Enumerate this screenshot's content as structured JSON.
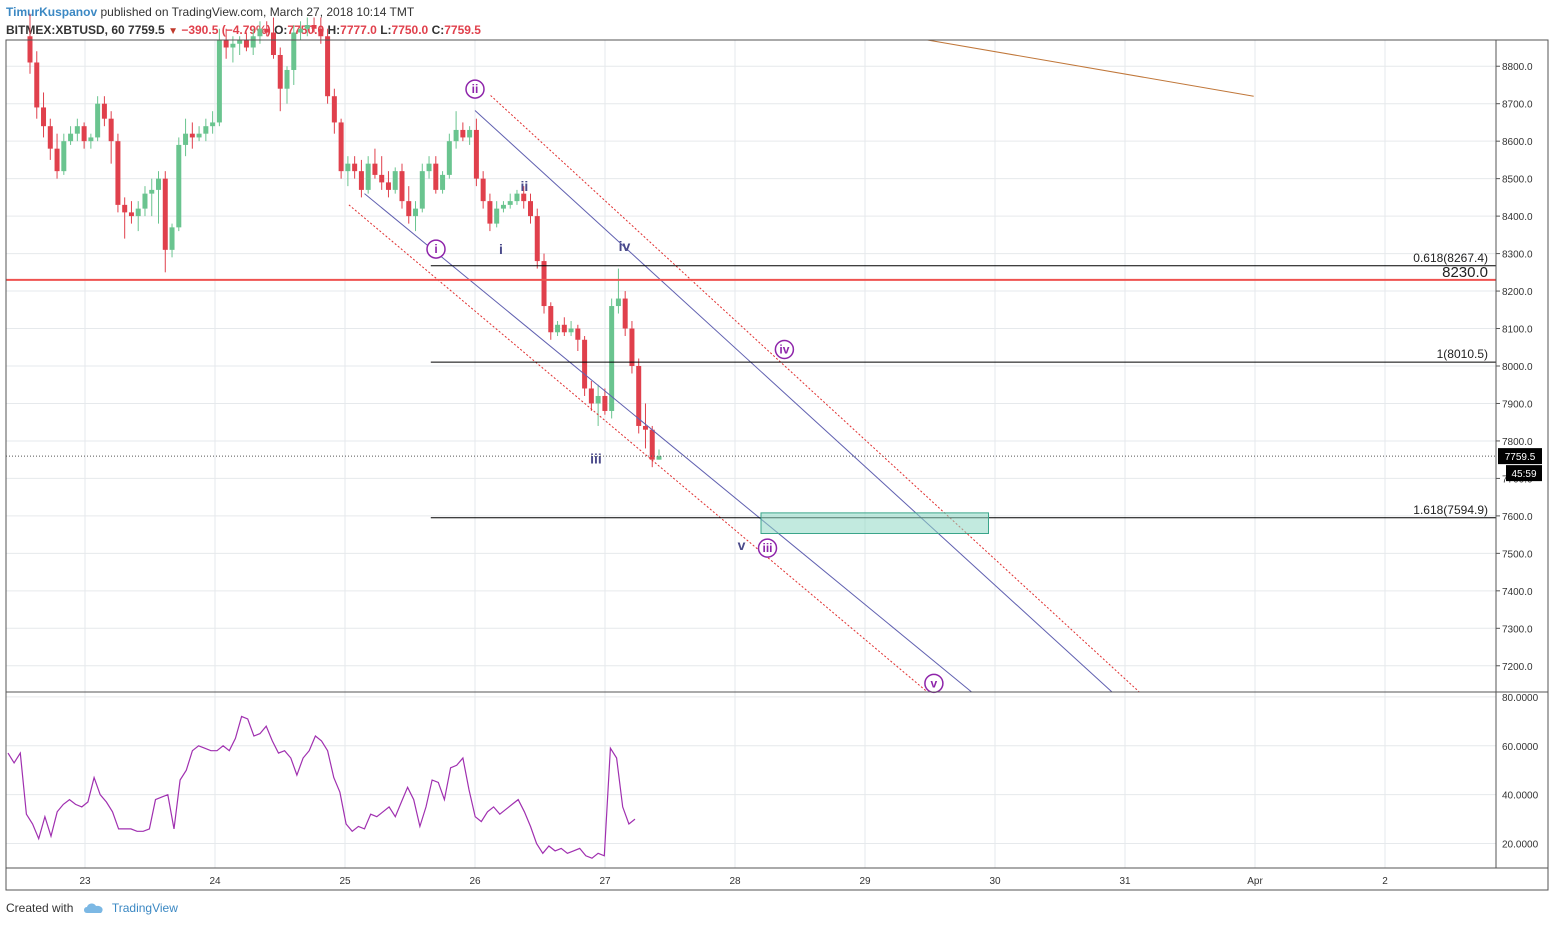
{
  "header": {
    "author": "TimurKuspanov",
    "published_text": "published on TradingView.com, March 27, 2018 10:14 TMT"
  },
  "symbol_bar": {
    "symbol": "BITMEX:XBTUSD, 60",
    "last": "7759.5",
    "change": "−390.5 (−4.79%)",
    "open_label": "O:",
    "open": "7750.0",
    "high_label": "H:",
    "high": "7777.0",
    "low_label": "L:",
    "low": "7750.0",
    "close_label": "C:",
    "close": "7759.5"
  },
  "footer": {
    "created_with": "Created with",
    "brand": "TradingView"
  },
  "colors": {
    "up": "#6ac48f",
    "down": "#e0404c",
    "grid": "#e6e9ec",
    "channel": "#6060b0",
    "channel_dotted": "#e03030",
    "level_red": "#ef5350",
    "wave_purple": "#8e24aa",
    "wave_dark": "#4a4a8a",
    "rsi": "#a030b0",
    "target_box": "#8fd8c4",
    "trend_brown": "#c0773a"
  },
  "chart_data": {
    "type": "candlestick",
    "symbol": "BITMEX:XBTUSD",
    "interval": "60",
    "x_ticks": [
      "23",
      "24",
      "25",
      "26",
      "27",
      "28",
      "29",
      "30",
      "31",
      "Apr",
      "2"
    ],
    "y_ticks": [
      "8800.0",
      "8700.0",
      "8600.0",
      "8500.0",
      "8400.0",
      "8300.0",
      "8200.0",
      "8100.0",
      "8000.0",
      "7900.0",
      "7800.0",
      "7700.0",
      "7600.0",
      "7500.0",
      "7400.0",
      "7300.0",
      "7200.0"
    ],
    "ylim": [
      7130,
      8870
    ],
    "last_price_label": "7759.5",
    "countdown_label": "45:59",
    "levels": [
      {
        "label": "0.618(8267.4)",
        "price": 8267.4,
        "color": "#000000"
      },
      {
        "label": "8230.0",
        "price": 8230.0,
        "color": "#ef5350"
      },
      {
        "label": "1(8010.5)",
        "price": 8010.5,
        "color": "#000000"
      },
      {
        "label": "1.618(7594.9)",
        "price": 7594.9,
        "color": "#000000"
      }
    ],
    "wave_labels_circled": [
      {
        "text": "ii",
        "day": 26.0,
        "price": 8739
      },
      {
        "text": "i",
        "day": 25.7,
        "price": 8312
      },
      {
        "text": "iv",
        "day": 28.38,
        "price": 8044
      },
      {
        "text": "iii",
        "day": 28.25,
        "price": 7514
      },
      {
        "text": "v",
        "day": 29.53,
        "price": 7153
      }
    ],
    "wave_labels_plain": [
      {
        "text": "ii",
        "day": 26.38,
        "price": 8480
      },
      {
        "text": "i",
        "day": 26.2,
        "price": 8312
      },
      {
        "text": "iv",
        "day": 27.15,
        "price": 8320
      },
      {
        "text": "iii",
        "day": 26.93,
        "price": 7753
      },
      {
        "text": "v",
        "day": 28.05,
        "price": 7522
      }
    ],
    "candles": [
      [
        8880,
        8940,
        8780,
        8810
      ],
      [
        8810,
        8840,
        8660,
        8690
      ],
      [
        8690,
        8730,
        8610,
        8640
      ],
      [
        8640,
        8660,
        8550,
        8580
      ],
      [
        8580,
        8620,
        8500,
        8520
      ],
      [
        8520,
        8620,
        8510,
        8600
      ],
      [
        8600,
        8640,
        8590,
        8620
      ],
      [
        8620,
        8660,
        8600,
        8640
      ],
      [
        8640,
        8650,
        8580,
        8600
      ],
      [
        8600,
        8620,
        8580,
        8610
      ],
      [
        8610,
        8720,
        8600,
        8700
      ],
      [
        8700,
        8720,
        8640,
        8660
      ],
      [
        8660,
        8680,
        8540,
        8600
      ],
      [
        8600,
        8620,
        8410,
        8430
      ],
      [
        8430,
        8450,
        8340,
        8410
      ],
      [
        8410,
        8440,
        8380,
        8400
      ],
      [
        8400,
        8440,
        8360,
        8420
      ],
      [
        8420,
        8480,
        8400,
        8460
      ],
      [
        8460,
        8500,
        8400,
        8470
      ],
      [
        8470,
        8520,
        8380,
        8500
      ],
      [
        8500,
        8520,
        8250,
        8310
      ],
      [
        8310,
        8380,
        8290,
        8370
      ],
      [
        8370,
        8610,
        8360,
        8590
      ],
      [
        8590,
        8660,
        8560,
        8620
      ],
      [
        8620,
        8650,
        8580,
        8610
      ],
      [
        8610,
        8640,
        8600,
        8620
      ],
      [
        8620,
        8660,
        8600,
        8640
      ],
      [
        8640,
        8680,
        8620,
        8650
      ],
      [
        8650,
        8900,
        8640,
        8870
      ],
      [
        8870,
        8900,
        8820,
        8850
      ],
      [
        8850,
        8880,
        8810,
        8860
      ],
      [
        8860,
        8880,
        8830,
        8870
      ],
      [
        8870,
        8890,
        8840,
        8850
      ],
      [
        8850,
        8900,
        8830,
        8880
      ],
      [
        8880,
        8920,
        8860,
        8900
      ],
      [
        8900,
        8920,
        8880,
        8890
      ],
      [
        8890,
        8930,
        8820,
        8830
      ],
      [
        8830,
        8850,
        8680,
        8740
      ],
      [
        8740,
        8800,
        8700,
        8790
      ],
      [
        8790,
        8910,
        8750,
        8890
      ],
      [
        8890,
        8920,
        8870,
        8900
      ],
      [
        8900,
        8930,
        8880,
        8910
      ],
      [
        8910,
        8930,
        8890,
        8900
      ],
      [
        8900,
        8930,
        8860,
        8880
      ],
      [
        8880,
        8900,
        8700,
        8720
      ],
      [
        8720,
        8740,
        8620,
        8650
      ],
      [
        8650,
        8660,
        8500,
        8520
      ],
      [
        8520,
        8560,
        8480,
        8540
      ],
      [
        8540,
        8560,
        8500,
        8520
      ],
      [
        8520,
        8550,
        8450,
        8470
      ],
      [
        8470,
        8560,
        8460,
        8540
      ],
      [
        8540,
        8580,
        8500,
        8510
      ],
      [
        8510,
        8560,
        8470,
        8490
      ],
      [
        8490,
        8520,
        8450,
        8470
      ],
      [
        8470,
        8530,
        8460,
        8520
      ],
      [
        8520,
        8540,
        8420,
        8440
      ],
      [
        8440,
        8480,
        8380,
        8400
      ],
      [
        8400,
        8440,
        8360,
        8420
      ],
      [
        8420,
        8540,
        8410,
        8520
      ],
      [
        8520,
        8560,
        8500,
        8540
      ],
      [
        8540,
        8560,
        8460,
        8470
      ],
      [
        8470,
        8520,
        8460,
        8510
      ],
      [
        8510,
        8620,
        8500,
        8600
      ],
      [
        8600,
        8680,
        8580,
        8630
      ],
      [
        8630,
        8650,
        8600,
        8610
      ],
      [
        8610,
        8640,
        8590,
        8630
      ],
      [
        8630,
        8660,
        8480,
        8500
      ],
      [
        8500,
        8520,
        8420,
        8440
      ],
      [
        8440,
        8460,
        8360,
        8380
      ],
      [
        8380,
        8440,
        8370,
        8420
      ],
      [
        8420,
        8440,
        8410,
        8430
      ],
      [
        8430,
        8460,
        8420,
        8440
      ],
      [
        8440,
        8470,
        8430,
        8460
      ],
      [
        8460,
        8480,
        8420,
        8440
      ],
      [
        8440,
        8460,
        8380,
        8400
      ],
      [
        8400,
        8420,
        8260,
        8280
      ],
      [
        8280,
        8300,
        8140,
        8160
      ],
      [
        8160,
        8170,
        8070,
        8090
      ],
      [
        8090,
        8120,
        8080,
        8110
      ],
      [
        8110,
        8130,
        8080,
        8090
      ],
      [
        8090,
        8120,
        8080,
        8100
      ],
      [
        8100,
        8110,
        8040,
        8070
      ],
      [
        8070,
        8080,
        7920,
        7940
      ],
      [
        7940,
        7960,
        7880,
        7900
      ],
      [
        7900,
        7950,
        7840,
        7920
      ],
      [
        7920,
        7940,
        7870,
        7880
      ],
      [
        7880,
        8180,
        7860,
        8160
      ],
      [
        8160,
        8260,
        8140,
        8180
      ],
      [
        8180,
        8200,
        8080,
        8100
      ],
      [
        8100,
        8120,
        7980,
        8000
      ],
      [
        8000,
        8020,
        7820,
        7840
      ],
      [
        7840,
        7900,
        7780,
        7830
      ],
      [
        7830,
        7840,
        7730,
        7750
      ],
      [
        7750,
        7777,
        7750,
        7759.5
      ]
    ],
    "rsi": {
      "ylim": [
        10,
        82
      ],
      "y_ticks": [
        "80.0000",
        "60.0000",
        "40.0000",
        "20.0000"
      ],
      "values": [
        57,
        53,
        57,
        32,
        28,
        22,
        31,
        23,
        33,
        36,
        38,
        36,
        35,
        37,
        47,
        40,
        37,
        33,
        26,
        26,
        26,
        25,
        25,
        26,
        38,
        39,
        40,
        26,
        46,
        50,
        58,
        60,
        59,
        58,
        58,
        60,
        58,
        63,
        72,
        71,
        64,
        65,
        68,
        62,
        57,
        58,
        55,
        48,
        55,
        58,
        64,
        62,
        58,
        47,
        41,
        28,
        25,
        27,
        26,
        32,
        31,
        33,
        35,
        31,
        37,
        43,
        38,
        27,
        35,
        46,
        45,
        38,
        51,
        52,
        55,
        42,
        31,
        29,
        33,
        35,
        32,
        34,
        36,
        38,
        33,
        27,
        20,
        16,
        19,
        17,
        18,
        16,
        17,
        18,
        15,
        14,
        16,
        15,
        59,
        55,
        35,
        28,
        30
      ]
    }
  }
}
